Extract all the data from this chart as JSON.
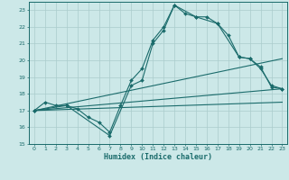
{
  "bg_color": "#cce8e8",
  "grid_color": "#aacccc",
  "line_color": "#1a6b6b",
  "xlabel": "Humidex (Indice chaleur)",
  "xlim": [
    -0.5,
    23.5
  ],
  "ylim": [
    15.0,
    23.5
  ],
  "yticks": [
    15,
    16,
    17,
    18,
    19,
    20,
    21,
    22,
    23
  ],
  "xticks": [
    0,
    1,
    2,
    3,
    4,
    5,
    6,
    7,
    8,
    9,
    10,
    11,
    12,
    13,
    14,
    15,
    16,
    17,
    18,
    19,
    20,
    21,
    22,
    23
  ],
  "series1_x": [
    0,
    1,
    2,
    3,
    4,
    5,
    6,
    7,
    8,
    9,
    10,
    11,
    12,
    13,
    14,
    15,
    16,
    17,
    18,
    19,
    20,
    21,
    22,
    23
  ],
  "series1_y": [
    17.0,
    17.5,
    17.3,
    17.3,
    17.1,
    16.6,
    16.3,
    15.7,
    17.3,
    18.8,
    19.5,
    21.2,
    22.0,
    23.3,
    22.8,
    22.6,
    22.6,
    22.2,
    21.5,
    20.2,
    20.1,
    19.6,
    18.4,
    18.3
  ],
  "series2_x": [
    0,
    3,
    7,
    9,
    10,
    11,
    12,
    13,
    15,
    17,
    19,
    20,
    21,
    22,
    23
  ],
  "series2_y": [
    17.0,
    17.3,
    15.5,
    18.5,
    18.8,
    21.0,
    21.8,
    23.3,
    22.6,
    22.2,
    20.2,
    20.1,
    19.5,
    18.5,
    18.3
  ],
  "series3_x": [
    0,
    23
  ],
  "series3_y": [
    17.0,
    18.3
  ],
  "series4_x": [
    0,
    23
  ],
  "series4_y": [
    17.0,
    20.1
  ],
  "series5_x": [
    0,
    23
  ],
  "series5_y": [
    17.0,
    17.5
  ]
}
